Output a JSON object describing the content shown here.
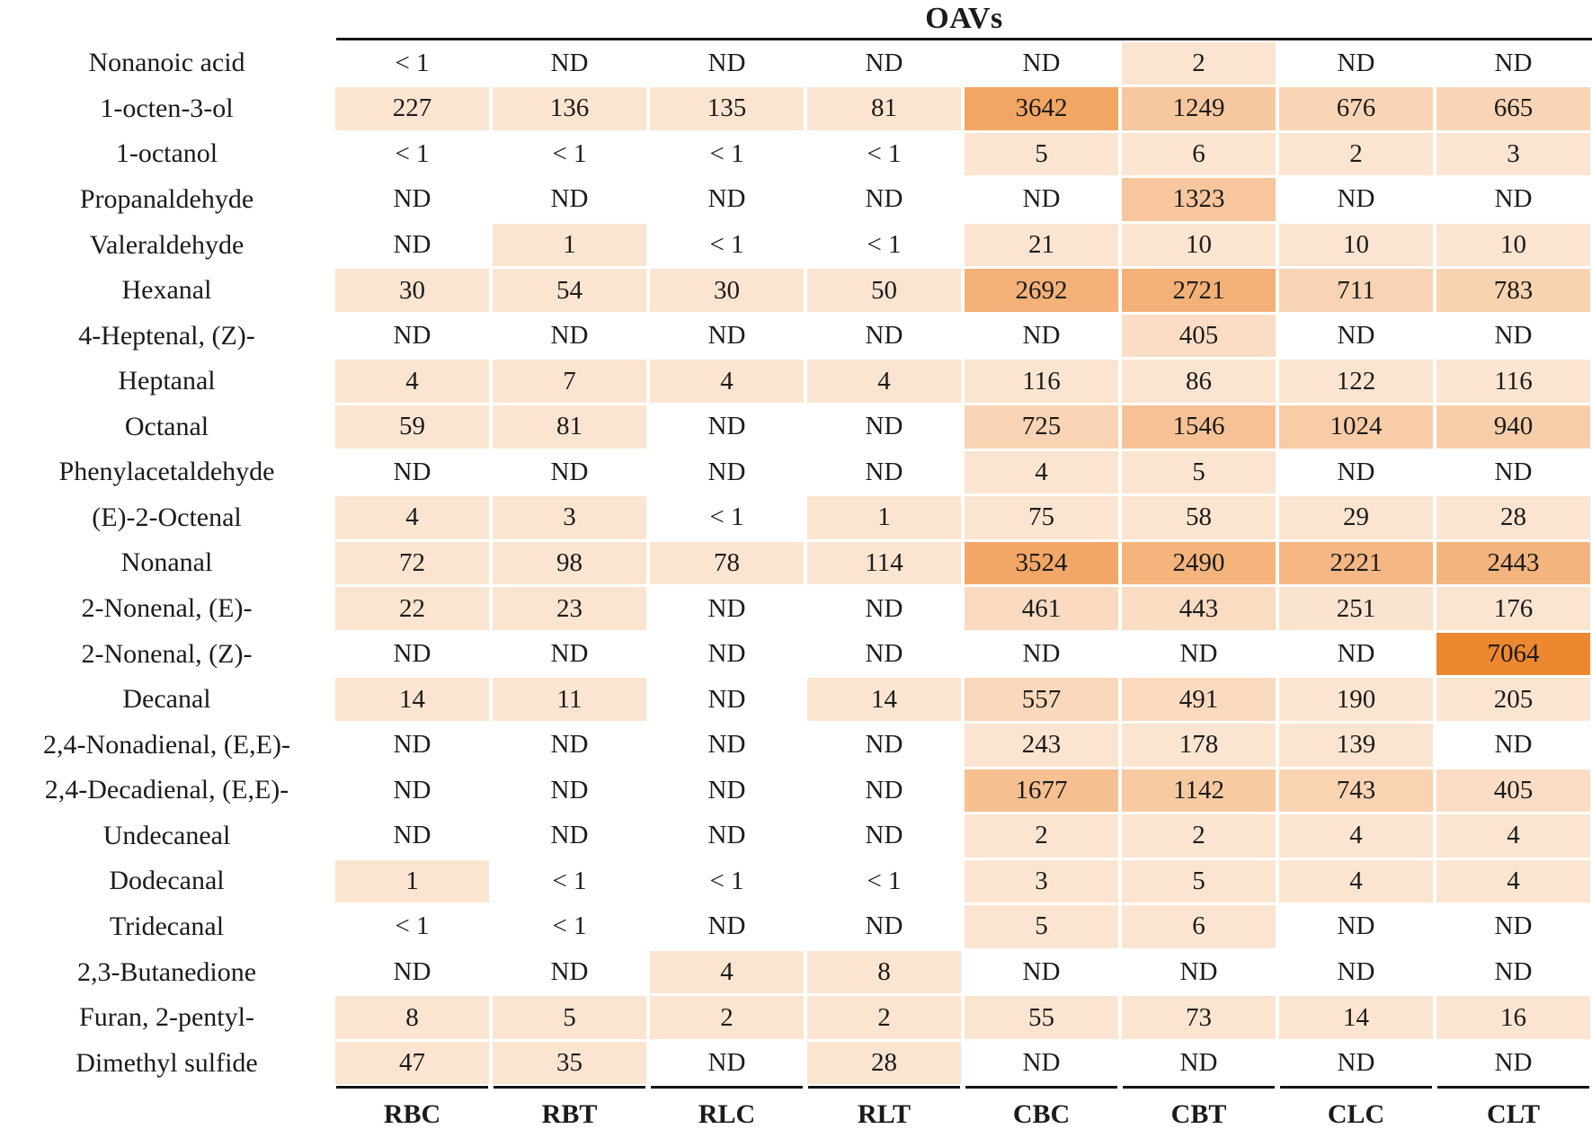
{
  "title": "OAVs",
  "chart_data": {
    "type": "heatmap",
    "title": "OAVs",
    "legend": "none",
    "cell_shading": "orange fill intensity scales with OAV magnitude; ND and < 1 cells are unshaded white",
    "columns": [
      "RBC",
      "RBT",
      "RLC",
      "RLT",
      "CBC",
      "CBT",
      "CLC",
      "CLT"
    ],
    "rows": [
      {
        "label": "Nonanoic acid",
        "values": [
          "< 1",
          "ND",
          "ND",
          "ND",
          "ND",
          2,
          "ND",
          "ND"
        ]
      },
      {
        "label": "1-octen-3-ol",
        "values": [
          227,
          136,
          135,
          81,
          3642,
          1249,
          676,
          665
        ]
      },
      {
        "label": "1-octanol",
        "values": [
          "< 1",
          "< 1",
          "< 1",
          "< 1",
          5,
          6,
          2,
          3
        ]
      },
      {
        "label": "Propanaldehyde",
        "values": [
          "ND",
          "ND",
          "ND",
          "ND",
          "ND",
          1323,
          "ND",
          "ND"
        ]
      },
      {
        "label": "Valeraldehyde",
        "values": [
          "ND",
          1,
          "< 1",
          "< 1",
          21,
          10,
          10,
          10
        ]
      },
      {
        "label": "Hexanal",
        "values": [
          30,
          54,
          30,
          50,
          2692,
          2721,
          711,
          783
        ]
      },
      {
        "label": "4-Heptenal, (Z)-",
        "values": [
          "ND",
          "ND",
          "ND",
          "ND",
          "ND",
          405,
          "ND",
          "ND"
        ]
      },
      {
        "label": "Heptanal",
        "values": [
          4,
          7,
          4,
          4,
          116,
          86,
          122,
          116
        ]
      },
      {
        "label": "Octanal",
        "values": [
          59,
          81,
          "ND",
          "ND",
          725,
          1546,
          1024,
          940
        ]
      },
      {
        "label": "Phenylacetaldehyde",
        "values": [
          "ND",
          "ND",
          "ND",
          "ND",
          4,
          5,
          "ND",
          "ND"
        ]
      },
      {
        "label": "(E)-2-Octenal",
        "values": [
          4,
          3,
          "< 1",
          1,
          75,
          58,
          29,
          28
        ]
      },
      {
        "label": "Nonanal",
        "values": [
          72,
          98,
          78,
          114,
          3524,
          2490,
          2221,
          2443
        ]
      },
      {
        "label": "2-Nonenal, (E)-",
        "values": [
          22,
          23,
          "ND",
          "ND",
          461,
          443,
          251,
          176
        ]
      },
      {
        "label": "2-Nonenal, (Z)-",
        "values": [
          "ND",
          "ND",
          "ND",
          "ND",
          "ND",
          "ND",
          "ND",
          7064
        ]
      },
      {
        "label": "Decanal",
        "values": [
          14,
          11,
          "ND",
          14,
          557,
          491,
          190,
          205
        ]
      },
      {
        "label": "2,4-Nonadienal, (E,E)-",
        "values": [
          "ND",
          "ND",
          "ND",
          "ND",
          243,
          178,
          139,
          "ND"
        ]
      },
      {
        "label": "2,4-Decadienal, (E,E)-",
        "values": [
          "ND",
          "ND",
          "ND",
          "ND",
          1677,
          1142,
          743,
          405
        ]
      },
      {
        "label": "Undecaneal",
        "values": [
          "ND",
          "ND",
          "ND",
          "ND",
          2,
          2,
          4,
          4
        ]
      },
      {
        "label": "Dodecanal",
        "values": [
          1,
          "< 1",
          "< 1",
          "< 1",
          3,
          5,
          4,
          4
        ]
      },
      {
        "label": "Tridecanal",
        "values": [
          "< 1",
          "< 1",
          "ND",
          "ND",
          5,
          6,
          "ND",
          "ND"
        ]
      },
      {
        "label": "2,3-Butanedione",
        "values": [
          "ND",
          "ND",
          4,
          8,
          "ND",
          "ND",
          "ND",
          "ND"
        ]
      },
      {
        "label": "Furan, 2-pentyl-",
        "values": [
          8,
          5,
          2,
          2,
          55,
          73,
          14,
          16
        ]
      },
      {
        "label": "Dimethyl sulfide",
        "values": [
          47,
          35,
          "ND",
          28,
          "ND",
          "ND",
          "ND",
          "ND"
        ]
      }
    ]
  },
  "heatmap_style": {
    "max_value": 7064,
    "exponent": 0.44,
    "floor_t": 0.22,
    "max_color_rgb": [
      238,
      136,
      48
    ],
    "unshaded_values": [
      "ND",
      "< 1"
    ],
    "text_color": "#1b1b1b",
    "rule_color": "#161616"
  }
}
